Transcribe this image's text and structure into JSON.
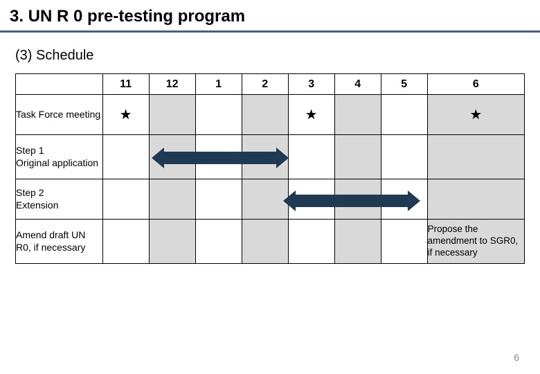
{
  "title": "3. UN R 0 pre-testing program",
  "subtitle": "(3) Schedule",
  "page_number": "6",
  "columns": [
    "11",
    "12",
    "1",
    "2",
    "3",
    "4",
    "5",
    "6"
  ],
  "rows": {
    "task_force": {
      "label": "Task Force meeting",
      "stars": {
        "c11": "★",
        "c3": "★",
        "c6": "★"
      }
    },
    "step1": {
      "label": "Step 1\nOriginal application"
    },
    "step2": {
      "label": "Step 2\nExtension"
    },
    "amend": {
      "label": "Amend draft UN R0, if necessary",
      "note": "Propose the amendment to SGR0, if necessary"
    }
  },
  "arrows": {
    "step1": {
      "color": "#1f3a52"
    },
    "step2": {
      "color": "#1f3a52"
    }
  },
  "colors": {
    "rule": "#4a5f7a",
    "shaded": "#d9d9d9"
  }
}
